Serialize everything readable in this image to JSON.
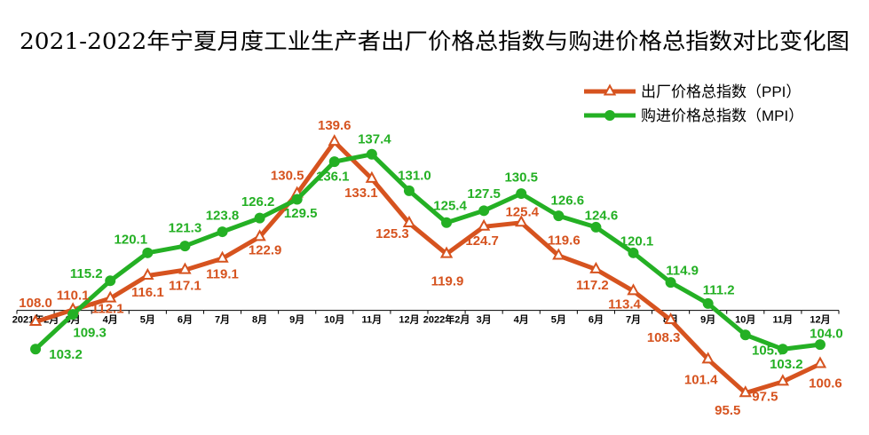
{
  "chart_data": {
    "type": "line",
    "title": "2021-2022年宁夏月度工业生产者出厂价格总指数与购进价格总指数对比变化图",
    "categories": [
      "2021年2月",
      "3月",
      "4月",
      "5月",
      "6月",
      "7月",
      "8月",
      "9月",
      "10月",
      "11月",
      "12月",
      "2022年2月",
      "3月",
      "4月",
      "5月",
      "6月",
      "7月",
      "8月",
      "9月",
      "10月",
      "11月",
      "12月"
    ],
    "series": [
      {
        "name": "出厂价格总指数（PPI）",
        "color": "#D6531F",
        "marker": "triangle",
        "values": [
          108.0,
          110.1,
          112.1,
          116.1,
          117.1,
          119.1,
          122.9,
          130.5,
          139.6,
          133.1,
          125.3,
          119.9,
          124.7,
          125.4,
          119.6,
          117.2,
          113.4,
          108.3,
          101.4,
          95.5,
          97.5,
          100.6
        ],
        "data_labels": [
          "108.0",
          "110.1",
          "112.1",
          "116.1",
          "117.1",
          "119.1",
          "122.9",
          "130.5",
          "139.6",
          "133.1",
          "125.3",
          "119.9",
          "124.7",
          "125.4",
          "119.6",
          "117.2",
          "113.4",
          "108.3",
          "101.4",
          "95.5",
          "97.5",
          "100.6"
        ]
      },
      {
        "name": "购进价格总指数（MPI）",
        "color": "#24B024",
        "marker": "circle",
        "values": [
          103.2,
          109.3,
          115.2,
          120.1,
          121.3,
          123.8,
          126.2,
          129.5,
          136.1,
          137.4,
          131.0,
          125.4,
          127.5,
          130.5,
          126.6,
          124.6,
          120.1,
          114.9,
          111.2,
          105.7,
          103.2,
          104.0
        ],
        "data_labels": [
          "103.2",
          "109.3",
          "115.2",
          "120.1",
          "121.3",
          "123.8",
          "126.2",
          "129.5",
          "136.1",
          "137.4",
          "131.0",
          "125.4",
          "127.5",
          "130.5",
          "126.6",
          "124.6",
          "120.1",
          "114.9",
          "111.2",
          "105.7",
          "103.2",
          "104.0"
        ]
      }
    ],
    "ylim": [
      90,
      145
    ],
    "x_axis_crosses_at": 110,
    "y_axis_visible": false,
    "grid": false,
    "legend_position": "top-right"
  }
}
